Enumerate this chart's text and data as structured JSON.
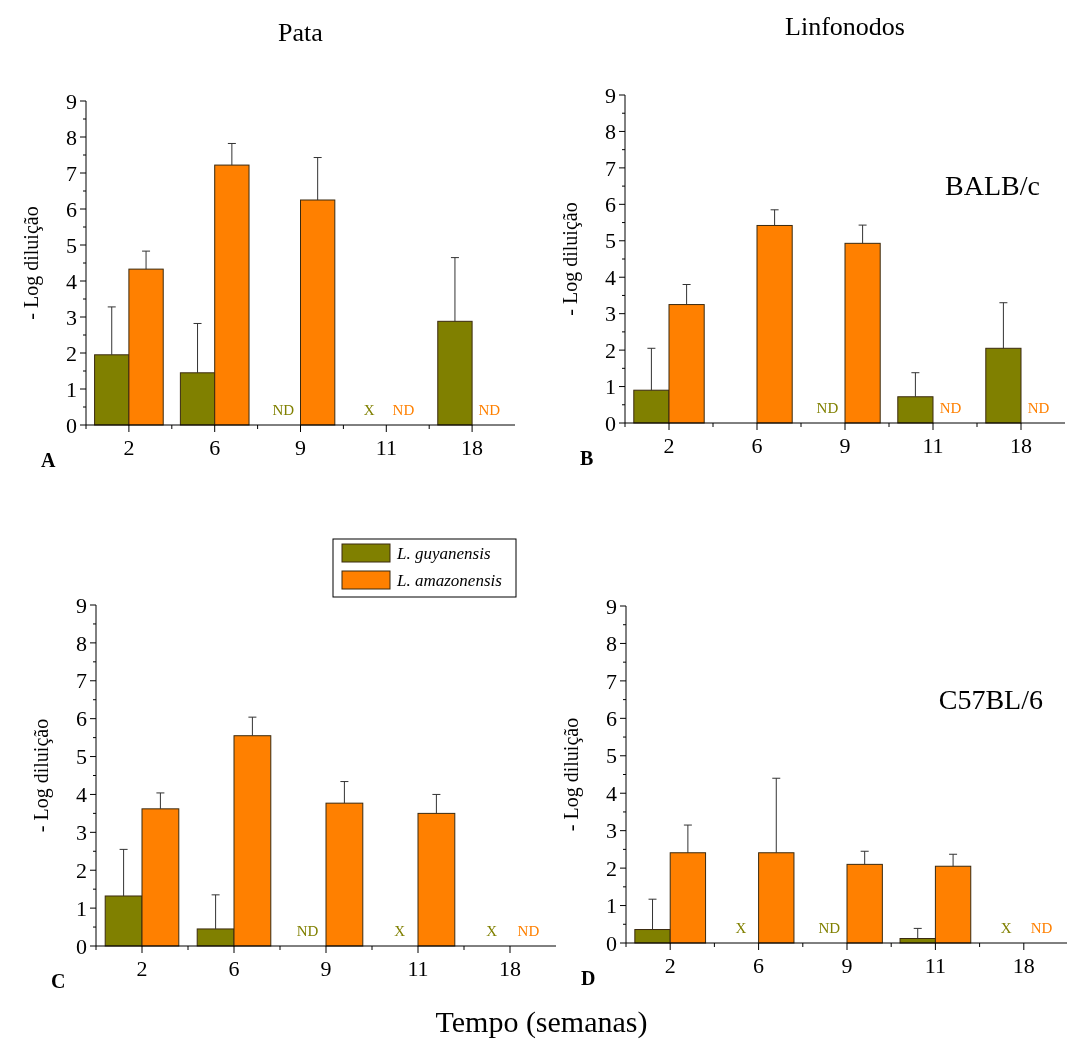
{
  "chart_data": [
    {
      "type": "bar",
      "title": "Pata",
      "ylabel": "- Log diluição",
      "categories": [
        "2",
        "6",
        "9",
        "11",
        "18"
      ],
      "ylim": [
        0,
        9
      ],
      "yticks": [
        0,
        {
          "value": 0.5,
          "label": null
        },
        1,
        {
          "value": 1.5,
          "label": null
        },
        2,
        {
          "value": 2.5,
          "label": null
        },
        3,
        {
          "value": 3.5,
          "label": null
        },
        4,
        {
          "value": 4.5,
          "label": null
        },
        5,
        {
          "value": 5.5,
          "label": null
        },
        6,
        {
          "value": 6.5,
          "label": null
        },
        7,
        {
          "value": 7.5,
          "label": null
        },
        8,
        {
          "value": 8.5,
          "label": null
        },
        9
      ],
      "annotations": [
        "A"
      ],
      "series": [
        {
          "color": "#808000",
          "values": [
            1.95,
            1.45,
            null,
            null,
            2.88
          ],
          "errors": [
            [
              1.95,
              3.28
            ],
            [
              1.45,
              2.82
            ],
            null,
            null,
            [
              2.88,
              4.65
            ]
          ],
          "value_labels": [
            null,
            null,
            "ND",
            "X",
            null
          ]
        },
        {
          "color": "#ff8000",
          "values": [
            4.33,
            7.22,
            6.25,
            null,
            null
          ],
          "errors": [
            [
              4.33,
              4.83
            ],
            [
              7.22,
              7.82
            ],
            [
              6.25,
              7.43
            ],
            null,
            null
          ],
          "value_labels": [
            null,
            null,
            null,
            "ND",
            "ND"
          ]
        }
      ]
    },
    {
      "type": "bar",
      "title": "Linfonodos",
      "ylabel": "- Log diluição",
      "categories": [
        "2",
        "6",
        "9",
        "11",
        "18"
      ],
      "ylim": [
        0,
        9
      ],
      "yticks": [
        0,
        {
          "value": 0.5,
          "label": null
        },
        1,
        {
          "value": 1.5,
          "label": null
        },
        2,
        {
          "value": 2.5,
          "label": null
        },
        3,
        {
          "value": 3.5,
          "label": null
        },
        4,
        {
          "value": 4.5,
          "label": null
        },
        5,
        {
          "value": 5.5,
          "label": null
        },
        6,
        {
          "value": 6.5,
          "label": null
        },
        7,
        {
          "value": 7.5,
          "label": null
        },
        8,
        {
          "value": 8.5,
          "label": null
        },
        9
      ],
      "annotations": [
        "B",
        "BALB/c"
      ],
      "series": [
        {
          "color": "#808000",
          "values": [
            0.9,
            null,
            null,
            0.72,
            2.05
          ],
          "errors": [
            [
              0.9,
              2.05
            ],
            null,
            null,
            [
              0.72,
              1.38
            ],
            [
              2.05,
              3.3
            ]
          ],
          "value_labels": [
            null,
            null,
            "ND",
            null,
            null
          ]
        },
        {
          "color": "#ff8000",
          "values": [
            3.25,
            5.42,
            4.93,
            null,
            null
          ],
          "errors": [
            [
              3.25,
              3.8
            ],
            [
              5.42,
              5.85
            ],
            [
              4.93,
              5.43
            ],
            null,
            null
          ],
          "value_labels": [
            null,
            null,
            null,
            "ND",
            "ND"
          ]
        }
      ]
    },
    {
      "type": "bar",
      "ylabel": "- Log diluição",
      "xlabel": "Tempo (semanas)",
      "categories": [
        "2",
        "6",
        "9",
        "11",
        "18"
      ],
      "ylim": [
        0,
        9
      ],
      "yticks": [
        0,
        {
          "value": 0.5,
          "label": null
        },
        1,
        {
          "value": 1.5,
          "label": null
        },
        2,
        {
          "value": 2.5,
          "label": null
        },
        3,
        {
          "value": 3.5,
          "label": null
        },
        4,
        {
          "value": 4.5,
          "label": null
        },
        5,
        {
          "value": 5.5,
          "label": null
        },
        6,
        {
          "value": 6.5,
          "label": null
        },
        7,
        {
          "value": 7.5,
          "label": null
        },
        8,
        {
          "value": 8.5,
          "label": null
        },
        9
      ],
      "annotations": [
        "C"
      ],
      "legend": "top right",
      "series": [
        {
          "name": "L. guyanensis",
          "color": "#808000",
          "values": [
            1.32,
            0.45,
            null,
            null,
            null
          ],
          "errors": [
            [
              1.32,
              2.55
            ],
            [
              0.45,
              1.35
            ],
            null,
            null,
            null
          ],
          "value_labels": [
            null,
            null,
            "ND",
            "X",
            "X"
          ]
        },
        {
          "name": "L. amazonensis",
          "color": "#ff8000",
          "values": [
            3.62,
            5.55,
            3.77,
            3.5,
            null
          ],
          "errors": [
            [
              3.62,
              4.04
            ],
            [
              5.55,
              6.04
            ],
            [
              3.77,
              4.34
            ],
            [
              3.5,
              4.0
            ],
            null
          ],
          "value_labels": [
            null,
            null,
            null,
            null,
            "ND"
          ]
        }
      ]
    },
    {
      "type": "bar",
      "ylabel": "- Log diluição",
      "categories": [
        "2",
        "6",
        "9",
        "11",
        "18"
      ],
      "ylim": [
        0,
        9
      ],
      "yticks": [
        0,
        {
          "value": 0.5,
          "label": null
        },
        1,
        {
          "value": 1.5,
          "label": null
        },
        2,
        {
          "value": 2.5,
          "label": null
        },
        3,
        {
          "value": 3.5,
          "label": null
        },
        4,
        {
          "value": 4.5,
          "label": null
        },
        5,
        {
          "value": 5.5,
          "label": null
        },
        6,
        {
          "value": 6.5,
          "label": null
        },
        7,
        {
          "value": 7.5,
          "label": null
        },
        8,
        {
          "value": 8.5,
          "label": null
        },
        9
      ],
      "annotations": [
        "D",
        "C57BL/6"
      ],
      "series": [
        {
          "color": "#808000",
          "values": [
            0.36,
            null,
            null,
            0.12,
            null
          ],
          "errors": [
            [
              0.36,
              1.17
            ],
            null,
            null,
            [
              0.12,
              0.39
            ],
            null
          ],
          "value_labels": [
            null,
            "X",
            "ND",
            null,
            "X"
          ]
        },
        {
          "color": "#ff8000",
          "values": [
            2.41,
            2.41,
            2.1,
            2.05,
            null
          ],
          "errors": [
            [
              2.41,
              3.15
            ],
            [
              2.41,
              4.4
            ],
            [
              2.1,
              2.45
            ],
            [
              2.05,
              2.37
            ],
            null
          ],
          "value_labels": [
            null,
            null,
            null,
            null,
            "ND"
          ]
        }
      ]
    }
  ]
}
